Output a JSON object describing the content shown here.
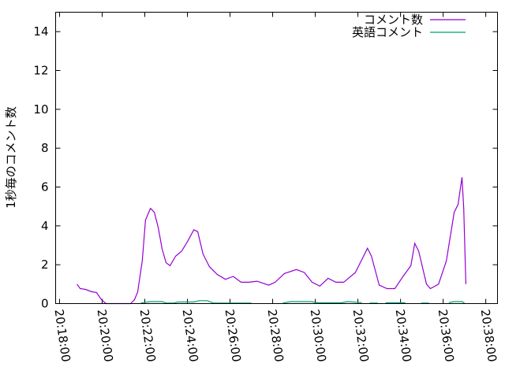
{
  "chart_data": {
    "type": "line",
    "title": "",
    "xlabel": "",
    "ylabel": "1秒毎のコメント数",
    "xlim": [
      "20:17:49",
      "20:38:33"
    ],
    "ylim": [
      0,
      15
    ],
    "xticks": [
      "20:18:00",
      "20:20:00",
      "20:22:00",
      "20:24:00",
      "20:26:00",
      "20:28:00",
      "20:30:00",
      "20:32:00",
      "20:34:00",
      "20:36:00",
      "20:38:00"
    ],
    "yticks": [
      0,
      2,
      4,
      6,
      8,
      10,
      12,
      14
    ],
    "grid": false,
    "legend_position": "top-right",
    "series": [
      {
        "name": "コメント数",
        "color": "#9400d3",
        "points": [
          [
            "20:18:49",
            1.0
          ],
          [
            "20:18:58",
            0.77
          ],
          [
            "20:19:13",
            0.73
          ],
          [
            "20:19:31",
            0.61
          ],
          [
            "20:19:44",
            0.57
          ],
          [
            "20:19:58",
            0.2
          ],
          [
            "20:20:11",
            0
          ],
          [
            "20:21:20",
            0
          ],
          [
            "20:21:31",
            0.2
          ],
          [
            "20:21:40",
            0.6
          ],
          [
            "20:21:53",
            2.2
          ],
          [
            "20:22:02",
            4.3
          ],
          [
            "20:22:16",
            4.9
          ],
          [
            "20:22:27",
            4.7
          ],
          [
            "20:22:38",
            3.9
          ],
          [
            "20:22:49",
            2.8
          ],
          [
            "20:23:00",
            2.1
          ],
          [
            "20:23:11",
            1.95
          ],
          [
            "20:23:27",
            2.45
          ],
          [
            "20:23:44",
            2.7
          ],
          [
            "20:24:02",
            3.25
          ],
          [
            "20:24:18",
            3.8
          ],
          [
            "20:24:29",
            3.7
          ],
          [
            "20:24:44",
            2.55
          ],
          [
            "20:25:02",
            1.9
          ],
          [
            "20:25:24",
            1.5
          ],
          [
            "20:25:47",
            1.25
          ],
          [
            "20:26:09",
            1.4
          ],
          [
            "20:26:31",
            1.1
          ],
          [
            "20:26:53",
            1.1
          ],
          [
            "20:27:16",
            1.15
          ],
          [
            "20:27:49",
            0.95
          ],
          [
            "20:28:07",
            1.1
          ],
          [
            "20:28:33",
            1.55
          ],
          [
            "20:29:07",
            1.75
          ],
          [
            "20:29:29",
            1.6
          ],
          [
            "20:29:51",
            1.1
          ],
          [
            "20:30:13",
            0.9
          ],
          [
            "20:30:36",
            1.3
          ],
          [
            "20:30:58",
            1.1
          ],
          [
            "20:31:20",
            1.1
          ],
          [
            "20:31:53",
            1.6
          ],
          [
            "20:32:27",
            2.85
          ],
          [
            "20:32:38",
            2.45
          ],
          [
            "20:33:00",
            0.95
          ],
          [
            "20:33:22",
            0.77
          ],
          [
            "20:33:44",
            0.77
          ],
          [
            "20:34:07",
            1.4
          ],
          [
            "20:34:29",
            1.95
          ],
          [
            "20:34:40",
            3.1
          ],
          [
            "20:34:51",
            2.7
          ],
          [
            "20:35:13",
            1.0
          ],
          [
            "20:35:24",
            0.77
          ],
          [
            "20:35:47",
            1.0
          ],
          [
            "20:36:09",
            2.2
          ],
          [
            "20:36:31",
            4.7
          ],
          [
            "20:36:42",
            5.1
          ],
          [
            "20:36:53",
            6.5
          ],
          [
            "20:36:58",
            4.9
          ],
          [
            "20:37:04",
            1.0
          ]
        ]
      },
      {
        "name": "英語コメント",
        "color": "#009e73",
        "points": [
          [
            "20:21:49",
            0.03
          ],
          [
            "20:22:16",
            0.1
          ],
          [
            "20:22:49",
            0.1
          ],
          [
            "20:23:00",
            0.03
          ],
          [
            "20:23:22",
            0.03
          ],
          [
            "20:23:33",
            0.08
          ],
          [
            "20:24:18",
            0.08
          ],
          [
            "20:24:33",
            0.15
          ],
          [
            "20:24:56",
            0.15
          ],
          [
            "20:25:13",
            0.03
          ],
          [
            "20:27:00",
            0.03
          ],
          null,
          [
            "20:28:29",
            0.03
          ],
          [
            "20:28:51",
            0.1
          ],
          [
            "20:29:47",
            0.1
          ],
          [
            "20:30:09",
            0.04
          ],
          [
            "20:31:13",
            0.04
          ],
          [
            "20:31:31",
            0.1
          ],
          [
            "20:32:11",
            0.05
          ],
          null,
          [
            "20:32:33",
            0.03
          ],
          [
            "20:32:56",
            0.03
          ],
          null,
          [
            "20:33:18",
            0.04
          ],
          [
            "20:34:13",
            0.04
          ],
          null,
          [
            "20:34:58",
            0.03
          ],
          [
            "20:35:20",
            0.03
          ],
          null,
          [
            "20:36:16",
            0.05
          ],
          [
            "20:36:31",
            0.1
          ],
          [
            "20:36:53",
            0.1
          ],
          [
            "20:37:00",
            0.03
          ]
        ]
      }
    ]
  }
}
